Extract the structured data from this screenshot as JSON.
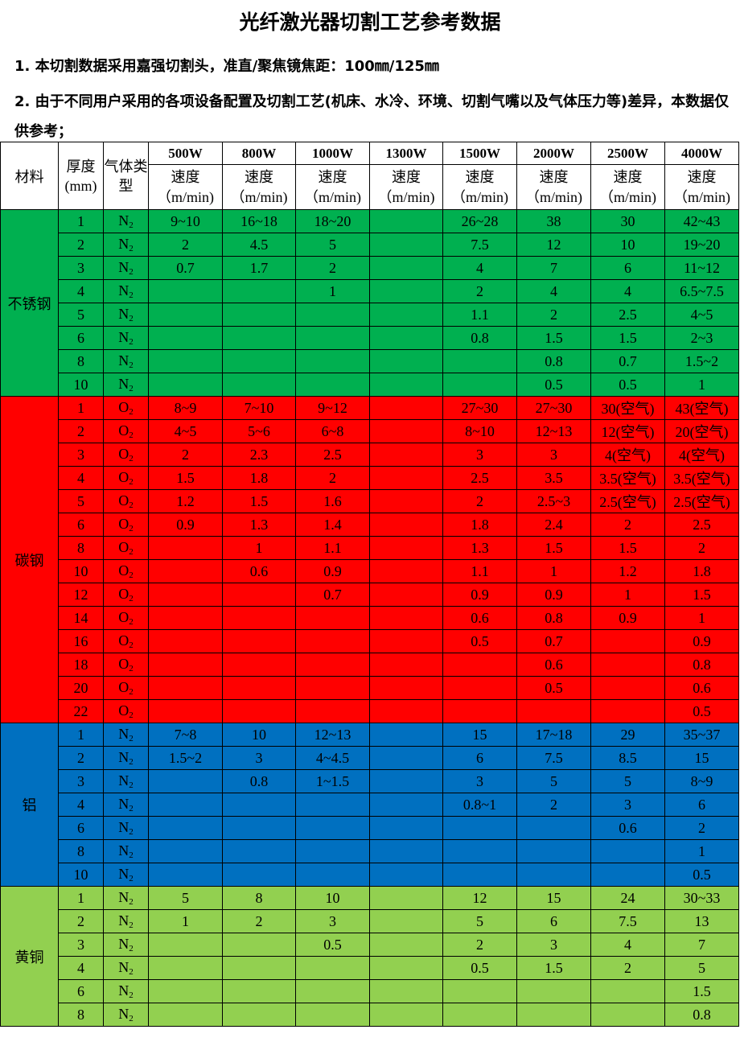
{
  "title": "光纤激光器切割工艺参考数据",
  "notes": [
    "1. 本切割数据采用嘉强切割头，准直/聚焦镜焦距：100㎜/125㎜",
    "2. 由于不同用户采用的各项设备配置及切割工艺(机床、水冷、环境、切割气嘴以及气体压力等)差异，本数据仅供参考；"
  ],
  "header": {
    "material": "材料",
    "thickness": "厚度(mm)",
    "gas": "气体类型",
    "speed": "速度",
    "unit": "（m/min)",
    "powers": [
      "500W",
      "800W",
      "1000W",
      "1300W",
      "1500W",
      "2000W",
      "2500W",
      "4000W"
    ]
  },
  "groups": [
    {
      "material": "不锈钢",
      "color": "#00b050",
      "gas": "N",
      "rows": [
        [
          "1",
          "9~10",
          "16~18",
          "18~20",
          "",
          "26~28",
          "38",
          "30",
          "42~43"
        ],
        [
          "2",
          "2",
          "4.5",
          "5",
          "",
          "7.5",
          "12",
          "10",
          "19~20"
        ],
        [
          "3",
          "0.7",
          "1.7",
          "2",
          "",
          "4",
          "7",
          "6",
          "11~12"
        ],
        [
          "4",
          "",
          "",
          "1",
          "",
          "2",
          "4",
          "4",
          "6.5~7.5"
        ],
        [
          "5",
          "",
          "",
          "",
          "",
          "1.1",
          "2",
          "2.5",
          "4~5"
        ],
        [
          "6",
          "",
          "",
          "",
          "",
          "0.8",
          "1.5",
          "1.5",
          "2~3"
        ],
        [
          "8",
          "",
          "",
          "",
          "",
          "",
          "0.8",
          "0.7",
          "1.5~2"
        ],
        [
          "10",
          "",
          "",
          "",
          "",
          "",
          "0.5",
          "0.5",
          "1"
        ]
      ]
    },
    {
      "material": "碳钢",
      "color": "#ff0000",
      "gas": "O",
      "rows": [
        [
          "1",
          "8~9",
          "7~10",
          "9~12",
          "",
          "27~30",
          "27~30",
          "30(空气)",
          "43(空气)"
        ],
        [
          "2",
          "4~5",
          "5~6",
          "6~8",
          "",
          "8~10",
          "12~13",
          "12(空气)",
          "20(空气)"
        ],
        [
          "3",
          "2",
          "2.3",
          "2.5",
          "",
          "3",
          "3",
          "4(空气)",
          "4(空气)"
        ],
        [
          "4",
          "1.5",
          "1.8",
          "2",
          "",
          "2.5",
          "3.5",
          "3.5(空气)",
          "3.5(空气)"
        ],
        [
          "5",
          "1.2",
          "1.5",
          "1.6",
          "",
          "2",
          "2.5~3",
          "2.5(空气)",
          "2.5(空气)"
        ],
        [
          "6",
          "0.9",
          "1.3",
          "1.4",
          "",
          "1.8",
          "2.4",
          "2",
          "2.5"
        ],
        [
          "8",
          "",
          "1",
          "1.1",
          "",
          "1.3",
          "1.5",
          "1.5",
          "2"
        ],
        [
          "10",
          "",
          "0.6",
          "0.9",
          "",
          "1.1",
          "1",
          "1.2",
          "1.8"
        ],
        [
          "12",
          "",
          "",
          "0.7",
          "",
          "0.9",
          "0.9",
          "1",
          "1.5"
        ],
        [
          "14",
          "",
          "",
          "",
          "",
          "0.6",
          "0.8",
          "0.9",
          "1"
        ],
        [
          "16",
          "",
          "",
          "",
          "",
          "0.5",
          "0.7",
          "",
          "0.9"
        ],
        [
          "18",
          "",
          "",
          "",
          "",
          "",
          "0.6",
          "",
          "0.8"
        ],
        [
          "20",
          "",
          "",
          "",
          "",
          "",
          "0.5",
          "",
          "0.6"
        ],
        [
          "22",
          "",
          "",
          "",
          "",
          "",
          "",
          "",
          "0.5"
        ]
      ]
    },
    {
      "material": "铝",
      "color": "#0070c0",
      "gas": "N",
      "rows": [
        [
          "1",
          "7~8",
          "10",
          "12~13",
          "",
          "15",
          "17~18",
          "29",
          "35~37"
        ],
        [
          "2",
          "1.5~2",
          "3",
          "4~4.5",
          "",
          "6",
          "7.5",
          "8.5",
          "15"
        ],
        [
          "3",
          "",
          "0.8",
          "1~1.5",
          "",
          "3",
          "5",
          "5",
          "8~9"
        ],
        [
          "4",
          "",
          "",
          "",
          "",
          "0.8~1",
          "2",
          "3",
          "6"
        ],
        [
          "6",
          "",
          "",
          "",
          "",
          "",
          "",
          "0.6",
          "2"
        ],
        [
          "8",
          "",
          "",
          "",
          "",
          "",
          "",
          "",
          "1"
        ],
        [
          "10",
          "",
          "",
          "",
          "",
          "",
          "",
          "",
          "0.5"
        ]
      ]
    },
    {
      "material": "黄铜",
      "color": "#92d050",
      "gas": "N",
      "rows": [
        [
          "1",
          "5",
          "8",
          "10",
          "",
          "12",
          "15",
          "24",
          "30~33"
        ],
        [
          "2",
          "1",
          "2",
          "3",
          "",
          "5",
          "6",
          "7.5",
          "13"
        ],
        [
          "3",
          "",
          "",
          "0.5",
          "",
          "2",
          "3",
          "4",
          "7"
        ],
        [
          "4",
          "",
          "",
          "",
          "",
          "0.5",
          "1.5",
          "2",
          "5"
        ],
        [
          "6",
          "",
          "",
          "",
          "",
          "",
          "",
          "",
          "1.5"
        ],
        [
          "8",
          "",
          "",
          "",
          "",
          "",
          "",
          "",
          "0.8"
        ]
      ]
    }
  ]
}
